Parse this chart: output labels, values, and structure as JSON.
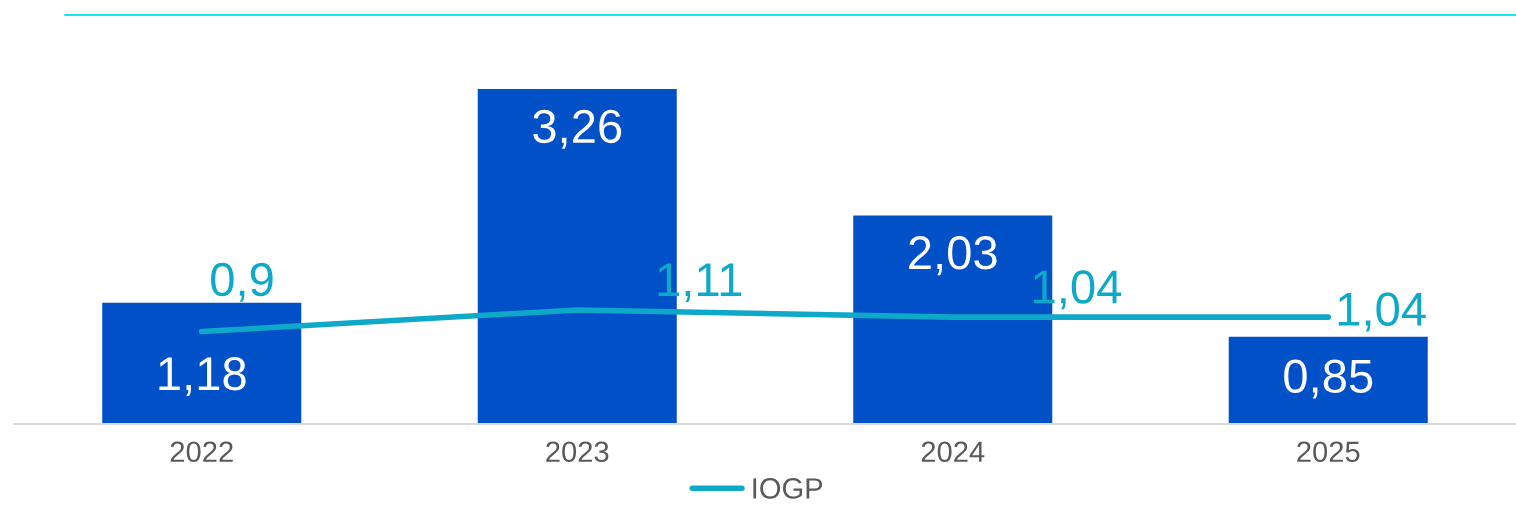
{
  "chart_data": {
    "type": "bar",
    "categories": [
      "2022",
      "2023",
      "2024",
      "2025"
    ],
    "series": [
      {
        "color": "#0050c8",
        "values": [
          1.18,
          3.26,
          2.03,
          0.85
        ],
        "value_labels": [
          "1,18",
          "3,26",
          "2,03",
          "0,85"
        ]
      },
      {
        "name": "IOGP",
        "type": "line",
        "color": "#0ea9c8",
        "values": [
          0.9,
          1.11,
          1.04,
          1.04
        ],
        "value_labels": [
          "0,9",
          "1,11",
          "1,04",
          "1,04"
        ]
      }
    ],
    "legend": "bottom",
    "tick_labels": "x"
  }
}
